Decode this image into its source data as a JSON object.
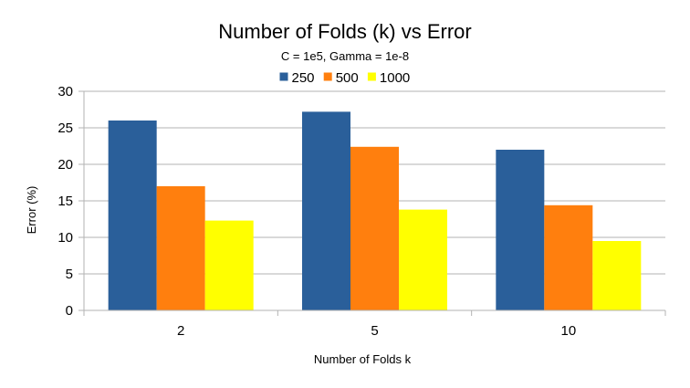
{
  "chart_data": {
    "type": "bar",
    "title": "Number of Folds (k) vs Error",
    "subtitle": "C = 1e5, Gamma = 1e-8",
    "xlabel": "Number of Folds k",
    "ylabel": "Error (%)",
    "categories": [
      "2",
      "5",
      "10"
    ],
    "series": [
      {
        "name": "250",
        "color": "#2a5f9a",
        "values": [
          26.0,
          27.2,
          22.0
        ]
      },
      {
        "name": "500",
        "color": "#ff7f0e",
        "values": [
          17.0,
          22.4,
          14.4
        ]
      },
      {
        "name": "1000",
        "color": "#ffff00",
        "values": [
          12.3,
          13.8,
          9.5
        ]
      }
    ],
    "ylim": [
      0,
      30
    ],
    "yticks": [
      0,
      5,
      10,
      15,
      20,
      25,
      30
    ],
    "grid": true,
    "legend_position": "top"
  }
}
